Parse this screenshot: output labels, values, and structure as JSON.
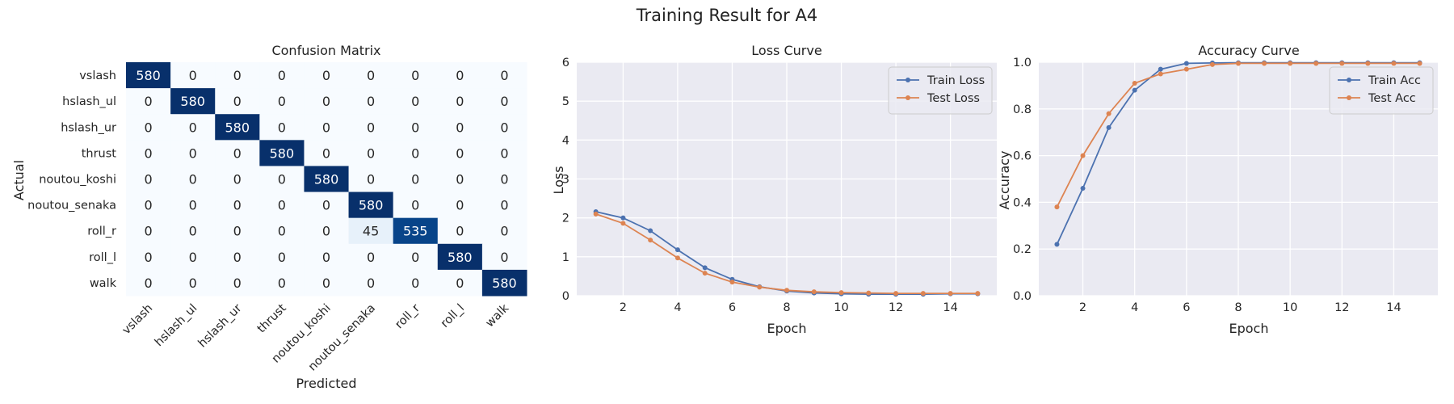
{
  "figure_title": "Training Result for A4",
  "chart_data": [
    {
      "type": "heatmap",
      "title": "Confusion Matrix",
      "xlabel": "Predicted",
      "ylabel": "Actual",
      "labels": [
        "vslash",
        "hslash_ul",
        "hslash_ur",
        "thrust",
        "noutou_koshi",
        "noutou_senaka",
        "roll_r",
        "roll_l",
        "walk"
      ],
      "matrix": [
        [
          580,
          0,
          0,
          0,
          0,
          0,
          0,
          0,
          0
        ],
        [
          0,
          580,
          0,
          0,
          0,
          0,
          0,
          0,
          0
        ],
        [
          0,
          0,
          580,
          0,
          0,
          0,
          0,
          0,
          0
        ],
        [
          0,
          0,
          0,
          580,
          0,
          0,
          0,
          0,
          0
        ],
        [
          0,
          0,
          0,
          0,
          580,
          0,
          0,
          0,
          0
        ],
        [
          0,
          0,
          0,
          0,
          0,
          580,
          0,
          0,
          0
        ],
        [
          0,
          0,
          0,
          0,
          0,
          45,
          535,
          0,
          0
        ],
        [
          0,
          0,
          0,
          0,
          0,
          0,
          0,
          580,
          0
        ],
        [
          0,
          0,
          0,
          0,
          0,
          0,
          0,
          0,
          580
        ]
      ],
      "vmax": 580,
      "colormap": "Blues",
      "colorbar": false
    },
    {
      "type": "line",
      "title": "Loss Curve",
      "xlabel": "Epoch",
      "ylabel": "Loss",
      "x": [
        1,
        2,
        3,
        4,
        5,
        6,
        7,
        8,
        9,
        10,
        11,
        12,
        13,
        14,
        15
      ],
      "xlim": [
        0.3,
        15.7
      ],
      "ylim": [
        0,
        6
      ],
      "xticks": [
        2,
        4,
        6,
        8,
        10,
        12,
        14
      ],
      "yticks": [
        0,
        1,
        2,
        3,
        4,
        5,
        6
      ],
      "grid": true,
      "legend_position": "top-right",
      "series": [
        {
          "name": "Train Loss",
          "color": "#4c72b0",
          "values": [
            2.16,
            2.0,
            1.67,
            1.18,
            0.72,
            0.42,
            0.23,
            0.12,
            0.07,
            0.05,
            0.04,
            0.04,
            0.04,
            0.05,
            0.05
          ]
        },
        {
          "name": "Test Loss",
          "color": "#dd8452",
          "values": [
            2.1,
            1.86,
            1.43,
            0.97,
            0.58,
            0.35,
            0.22,
            0.14,
            0.1,
            0.08,
            0.07,
            0.06,
            0.06,
            0.06,
            0.06
          ]
        }
      ]
    },
    {
      "type": "line",
      "title": "Accuracy Curve",
      "xlabel": "Epoch",
      "ylabel": "Accuracy",
      "x": [
        1,
        2,
        3,
        4,
        5,
        6,
        7,
        8,
        9,
        10,
        11,
        12,
        13,
        14,
        15
      ],
      "xlim": [
        0.3,
        15.7
      ],
      "ylim": [
        0,
        1
      ],
      "xticks": [
        2,
        4,
        6,
        8,
        10,
        12,
        14
      ],
      "yticks": [
        0.0,
        0.2,
        0.4,
        0.6,
        0.8,
        1.0
      ],
      "grid": true,
      "legend_position": "top-right",
      "series": [
        {
          "name": "Train Acc",
          "color": "#4c72b0",
          "values": [
            0.22,
            0.46,
            0.72,
            0.88,
            0.97,
            0.995,
            0.997,
            0.998,
            0.998,
            0.998,
            0.998,
            0.998,
            0.998,
            0.998,
            0.998
          ]
        },
        {
          "name": "Test Acc",
          "color": "#dd8452",
          "values": [
            0.38,
            0.6,
            0.78,
            0.91,
            0.95,
            0.97,
            0.99,
            0.995,
            0.995,
            0.995,
            0.995,
            0.995,
            0.995,
            0.995,
            0.995
          ]
        }
      ]
    }
  ]
}
